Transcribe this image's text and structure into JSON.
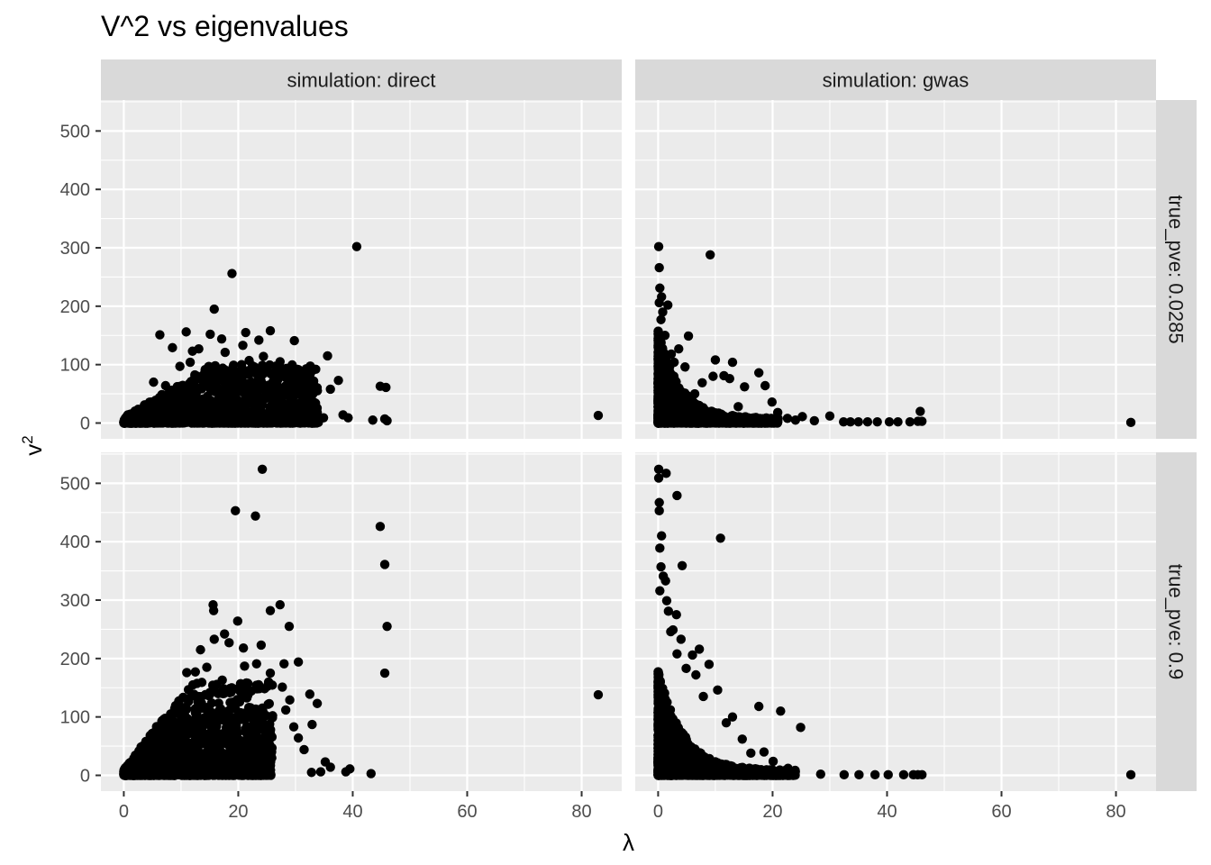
{
  "chart_data": {
    "type": "scatter",
    "title": "V^2 vs eigenvalues",
    "xlabel": "λ",
    "ylabel": "v",
    "ylabel_superscript": "2",
    "xlim": [
      -4,
      87
    ],
    "ylim": [
      -27,
      553
    ],
    "x_ticks": [
      0,
      20,
      40,
      60,
      80
    ],
    "y_ticks": [
      0,
      100,
      200,
      300,
      400,
      500
    ],
    "point_color": "#000000",
    "panel_background": "#ebebeb",
    "strip_background": "#d9d9d9",
    "grid": true,
    "column_facets": [
      "simulation: direct",
      "simulation: gwas"
    ],
    "row_facets": [
      "true_pve: 0.0285",
      "true_pve: 0.9"
    ],
    "panels": [
      {
        "simulation": "direct",
        "true_pve": "0.0285",
        "points": [
          [
            40.7,
            302
          ],
          [
            18.9,
            256
          ],
          [
            15.8,
            195
          ],
          [
            6.3,
            151
          ],
          [
            10.9,
            156
          ],
          [
            25.6,
            158
          ],
          [
            21.3,
            155
          ],
          [
            13.1,
            127
          ],
          [
            15.1,
            152
          ],
          [
            29.8,
            141
          ],
          [
            8.5,
            129
          ],
          [
            17.1,
            144
          ],
          [
            23.6,
            142
          ],
          [
            35.6,
            115
          ],
          [
            24.4,
            114
          ],
          [
            21.9,
            107
          ],
          [
            27.3,
            105
          ],
          [
            20.8,
            133
          ],
          [
            17.7,
            121
          ],
          [
            12.0,
            123
          ],
          [
            37.5,
            73
          ],
          [
            29.1,
            95
          ],
          [
            30.3,
            92
          ],
          [
            28.0,
            80
          ],
          [
            36.1,
            58
          ],
          [
            44.8,
            63
          ],
          [
            45.8,
            61
          ],
          [
            32.6,
            48
          ],
          [
            33.5,
            34
          ],
          [
            31.5,
            25
          ],
          [
            38.3,
            14
          ],
          [
            39.2,
            9
          ],
          [
            43.5,
            5
          ],
          [
            45.6,
            7
          ],
          [
            46.0,
            4
          ],
          [
            82.9,
            13
          ],
          [
            34.9,
            9
          ],
          [
            26.1,
            38
          ],
          [
            19.4,
            80
          ],
          [
            16.4,
            60
          ],
          [
            22.7,
            64
          ],
          [
            14.2,
            88
          ],
          [
            9.8,
            97
          ],
          [
            11.6,
            104
          ],
          [
            7.3,
            64
          ],
          [
            5.2,
            70
          ]
        ],
        "cluster": {
          "x_max": 34,
          "y_max": 90
        }
      },
      {
        "simulation": "gwas",
        "true_pve": "0.0285",
        "points": [
          [
            0.1,
            302
          ],
          [
            9.1,
            288
          ],
          [
            0.2,
            266
          ],
          [
            0.3,
            231
          ],
          [
            0.6,
            216
          ],
          [
            0.2,
            206
          ],
          [
            1.7,
            202
          ],
          [
            0.5,
            177
          ],
          [
            5.3,
            149
          ],
          [
            10.0,
            108
          ],
          [
            13.0,
            104
          ],
          [
            17.6,
            86
          ],
          [
            11.5,
            81
          ],
          [
            9.6,
            80
          ],
          [
            12.5,
            76
          ],
          [
            7.7,
            69
          ],
          [
            15.1,
            62
          ],
          [
            18.7,
            64
          ],
          [
            19.9,
            36
          ],
          [
            3.6,
            127
          ],
          [
            2.8,
            104
          ],
          [
            4.7,
            96
          ],
          [
            30.0,
            12
          ],
          [
            45.8,
            20
          ],
          [
            46.1,
            3
          ],
          [
            45.4,
            3
          ],
          [
            44.0,
            2
          ],
          [
            41.9,
            2
          ],
          [
            40.4,
            2
          ],
          [
            38.3,
            2
          ],
          [
            36.6,
            2
          ],
          [
            35.0,
            2
          ],
          [
            33.6,
            2
          ],
          [
            32.4,
            2
          ],
          [
            27.3,
            4
          ],
          [
            25.2,
            11
          ],
          [
            24.0,
            5
          ],
          [
            82.6,
            1
          ],
          [
            1.2,
            150
          ],
          [
            2.3,
            118
          ],
          [
            6.4,
            50
          ],
          [
            14.0,
            28
          ],
          [
            20.9,
            18
          ],
          [
            22.6,
            8
          ],
          [
            0.8,
            190
          ],
          [
            0.4,
            120
          ]
        ],
        "cluster": {
          "x_max": 21,
          "y_max": 150
        }
      },
      {
        "simulation": "direct",
        "true_pve": "0.9",
        "points": [
          [
            24.2,
            524
          ],
          [
            19.5,
            453
          ],
          [
            23.0,
            444
          ],
          [
            44.8,
            426
          ],
          [
            45.6,
            361
          ],
          [
            46.0,
            255
          ],
          [
            45.6,
            175
          ],
          [
            82.9,
            138
          ],
          [
            15.6,
            292
          ],
          [
            27.3,
            292
          ],
          [
            15.7,
            282
          ],
          [
            25.6,
            282
          ],
          [
            19.9,
            264
          ],
          [
            28.9,
            255
          ],
          [
            15.8,
            233
          ],
          [
            24.0,
            223
          ],
          [
            18.4,
            227
          ],
          [
            17.6,
            242
          ],
          [
            13.4,
            215
          ],
          [
            20.9,
            218
          ],
          [
            30.5,
            194
          ],
          [
            28.0,
            191
          ],
          [
            23.2,
            191
          ],
          [
            25.6,
            175
          ],
          [
            21.1,
            187
          ],
          [
            12.5,
            177
          ],
          [
            11.0,
            176
          ],
          [
            14.5,
            185
          ],
          [
            17.2,
            163
          ],
          [
            32.5,
            139
          ],
          [
            33.8,
            123
          ],
          [
            29.0,
            129
          ],
          [
            27.7,
            151
          ],
          [
            28.3,
            112
          ],
          [
            26.0,
            102
          ],
          [
            29.7,
            83
          ],
          [
            32.9,
            87
          ],
          [
            30.5,
            64
          ],
          [
            31.5,
            44
          ],
          [
            35.2,
            23
          ],
          [
            36.1,
            14
          ],
          [
            39.5,
            11
          ],
          [
            43.2,
            3
          ],
          [
            38.8,
            6
          ],
          [
            34.4,
            6
          ],
          [
            32.8,
            5
          ]
        ],
        "cluster": {
          "x_max": 26,
          "y_max": 150
        }
      },
      {
        "simulation": "gwas",
        "true_pve": "0.9",
        "points": [
          [
            0.1,
            524
          ],
          [
            1.4,
            517
          ],
          [
            0.1,
            509
          ],
          [
            3.3,
            479
          ],
          [
            0.2,
            467
          ],
          [
            0.2,
            453
          ],
          [
            0.6,
            410
          ],
          [
            10.9,
            406
          ],
          [
            0.3,
            389
          ],
          [
            4.2,
            359
          ],
          [
            0.5,
            357
          ],
          [
            0.9,
            341
          ],
          [
            1.3,
            333
          ],
          [
            0.3,
            316
          ],
          [
            1.5,
            299
          ],
          [
            1.8,
            281
          ],
          [
            3.2,
            275
          ],
          [
            2.6,
            249
          ],
          [
            2.2,
            246
          ],
          [
            4.0,
            233
          ],
          [
            6.0,
            206
          ],
          [
            7.2,
            216
          ],
          [
            3.3,
            208
          ],
          [
            4.9,
            183
          ],
          [
            8.9,
            190
          ],
          [
            6.6,
            172
          ],
          [
            10.4,
            146
          ],
          [
            7.9,
            135
          ],
          [
            17.6,
            118
          ],
          [
            21.4,
            110
          ],
          [
            24.9,
            82
          ],
          [
            13.0,
            100
          ],
          [
            11.9,
            90
          ],
          [
            14.7,
            62
          ],
          [
            18.5,
            40
          ],
          [
            22.7,
            12
          ],
          [
            28.4,
            2
          ],
          [
            32.5,
            1
          ],
          [
            35.1,
            1
          ],
          [
            37.9,
            1
          ],
          [
            40.2,
            1
          ],
          [
            42.9,
            1
          ],
          [
            44.6,
            1
          ],
          [
            45.4,
            1
          ],
          [
            46.1,
            1
          ],
          [
            82.6,
            1
          ],
          [
            16.2,
            38
          ],
          [
            20.1,
            24
          ]
        ],
        "cluster": {
          "x_max": 24,
          "y_max": 175
        }
      }
    ]
  }
}
